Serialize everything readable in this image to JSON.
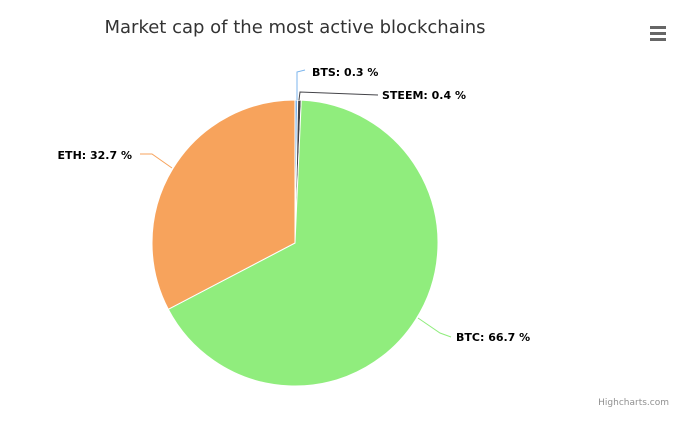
{
  "chart_data": {
    "type": "pie",
    "title": "Market cap of the most active blockchains",
    "slices": [
      {
        "name": "BTS",
        "value": 0.3,
        "label": "BTS: 0.3 %",
        "color": "#7cb5ec"
      },
      {
        "name": "STEEM",
        "value": 0.4,
        "label": "STEEM: 0.4 %",
        "color": "#434348"
      },
      {
        "name": "BTC",
        "value": 66.7,
        "label": "BTC: 66.7 %",
        "color": "#90ed7d"
      },
      {
        "name": "ETH",
        "value": 32.7,
        "label": "ETH: 32.7 %",
        "color": "#f7a35c"
      }
    ]
  },
  "menu": {
    "icon": "hamburger-menu-icon"
  },
  "credits": {
    "text": "Highcharts.com"
  }
}
